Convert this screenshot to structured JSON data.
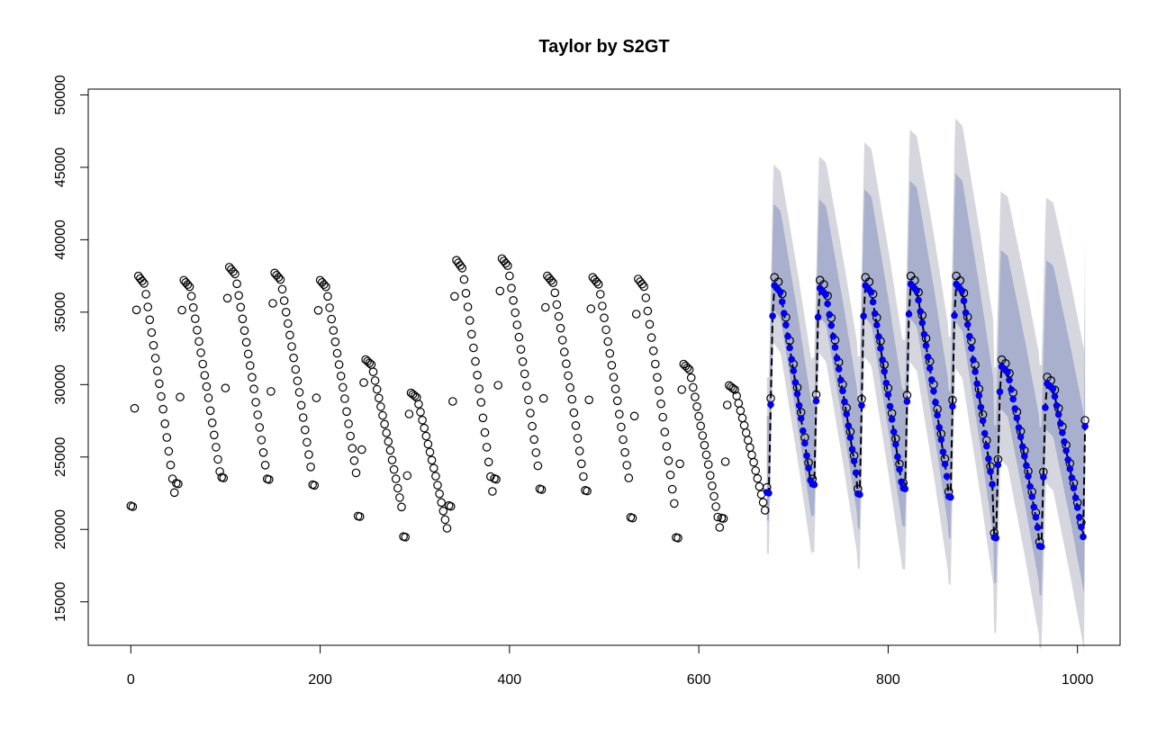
{
  "chart_data": {
    "type": "scatter",
    "title": "Taylor by S2GT",
    "xlabel": "",
    "ylabel": "",
    "xlim": [
      -45,
      1045
    ],
    "ylim": [
      12000,
      50400
    ],
    "x_ticks": [
      0,
      200,
      400,
      600,
      800,
      1000
    ],
    "y_ticks": [
      15000,
      20000,
      25000,
      30000,
      35000,
      40000,
      45000,
      50000
    ],
    "series": [
      {
        "type": "scatter-open-circles",
        "x_range": [
          0,
          1008
        ],
        "description_values": {
          "period": 48,
          "low": [
            21300,
            22900,
            23300,
            23200,
            22800,
            20700,
            19300,
            21300,
            23200,
            22500,
            22400,
            20500,
            19200,
            20600,
            22600,
            23200,
            22500,
            22900,
            22300,
            19500,
            18900,
            27500
          ],
          "high": [
            37600,
            37300,
            38200,
            37800,
            37300,
            31800,
            29500,
            38700,
            38800,
            37600,
            37500,
            37400,
            31500,
            30000,
            37500,
            37300,
            37500,
            37600,
            37600,
            31800,
            30600,
            29100
          ]
        }
      },
      {
        "type": "forecast-filled-points",
        "color": "#0000ee",
        "x_range": [
          672,
          1008
        ]
      },
      {
        "type": "prediction-interval-80",
        "color": "#a9b0cd"
      },
      {
        "type": "prediction-interval-95",
        "color": "#d6d7de"
      }
    ],
    "grid": false,
    "legend": "none"
  },
  "colors": {
    "observed": "#000000",
    "forecast": "#0000ee",
    "band80": "#a9b0cd",
    "band95": "#d6d7de"
  }
}
